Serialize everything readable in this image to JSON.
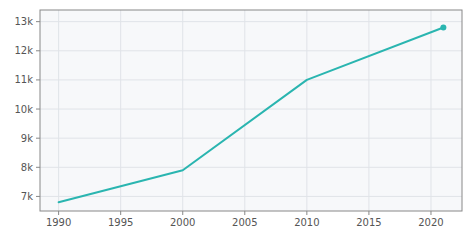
{
  "chart_data": {
    "type": "line",
    "x": [
      1990,
      2000,
      2010,
      2021
    ],
    "values": [
      6800,
      7900,
      11000,
      12800
    ],
    "color": "#2ab5b0",
    "xlim": [
      1988.5,
      2022.5
    ],
    "ylim": [
      6500,
      13400
    ],
    "xticks": [
      1990,
      1995,
      2000,
      2005,
      2010,
      2015,
      2020
    ],
    "yticks": [
      {
        "value": 7000,
        "label": "7k"
      },
      {
        "value": 8000,
        "label": "8k"
      },
      {
        "value": 9000,
        "label": "9k"
      },
      {
        "value": 10000,
        "label": "10k"
      },
      {
        "value": 11000,
        "label": "11k"
      },
      {
        "value": 12000,
        "label": "12k"
      },
      {
        "value": 13000,
        "label": "13k"
      }
    ],
    "grid": true
  }
}
